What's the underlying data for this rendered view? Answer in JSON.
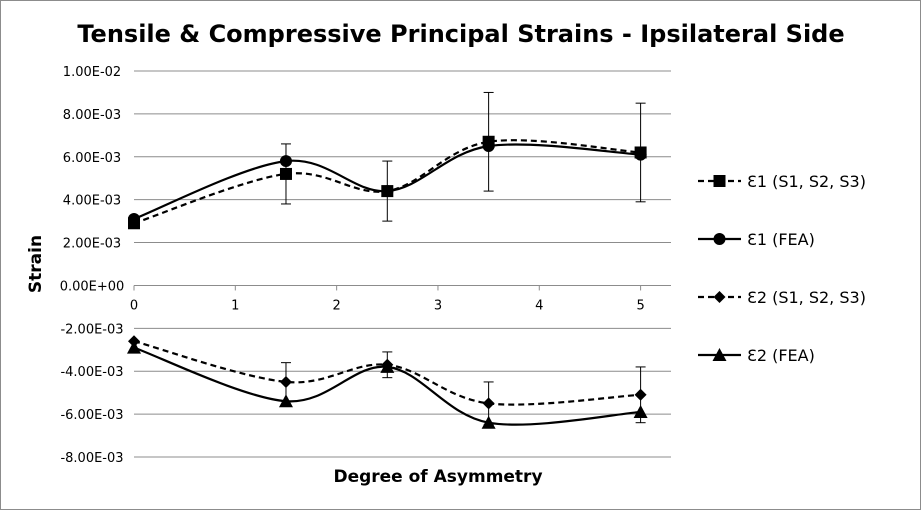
{
  "chart_data": {
    "type": "line",
    "title": "Tensile & Compressive Principal Strains - Ipsilateral Side",
    "xlabel": "Degree of Asymmetry",
    "ylabel": "Strain",
    "xlim": [
      0,
      5.3
    ],
    "ylim": [
      -0.008,
      0.01
    ],
    "x_ticks": [
      0,
      1,
      2,
      3,
      4,
      5
    ],
    "x_tick_labels": [
      "0",
      "1",
      "2",
      "3",
      "4",
      "5"
    ],
    "y_ticks": [
      0.01,
      0.008,
      0.006,
      0.004,
      0.002,
      0,
      -0.002,
      -0.004,
      -0.006,
      -0.008
    ],
    "y_tick_labels": [
      "1.00E-02",
      "8.00E-03",
      "6.00E-03",
      "4.00E-03",
      "2.00E-03",
      "0.00E+00",
      "-2.00E-03",
      "-4.00E-03",
      "-6.00E-03",
      "-8.00E-03"
    ],
    "grid": "horizontal",
    "legend_position": "right",
    "x": [
      0,
      1.5,
      2.5,
      3.5,
      5
    ],
    "series": [
      {
        "name": "Ɛ1 (S1, S2, S3)",
        "values": [
          0.0029,
          0.0052,
          0.0044,
          0.0067,
          0.0062
        ],
        "error": [
          0,
          0.0014,
          0.0014,
          0.0023,
          0.0023
        ],
        "marker": "square",
        "dash": true
      },
      {
        "name": "Ɛ1 (FEA)",
        "values": [
          0.0031,
          0.0058,
          0.0044,
          0.0065,
          0.0061
        ],
        "marker": "circle",
        "dash": false
      },
      {
        "name": "Ɛ2 (S1, S2, S3)",
        "values": [
          -0.0026,
          -0.0045,
          -0.0037,
          -0.0055,
          -0.0051
        ],
        "error": [
          0,
          0.0009,
          0.0006,
          0.001,
          0.0013
        ],
        "marker": "diamond",
        "dash": true
      },
      {
        "name": "Ɛ2 (FEA)",
        "values": [
          -0.0029,
          -0.0054,
          -0.0038,
          -0.0064,
          -0.0059
        ],
        "marker": "triangle",
        "dash": false
      }
    ]
  }
}
